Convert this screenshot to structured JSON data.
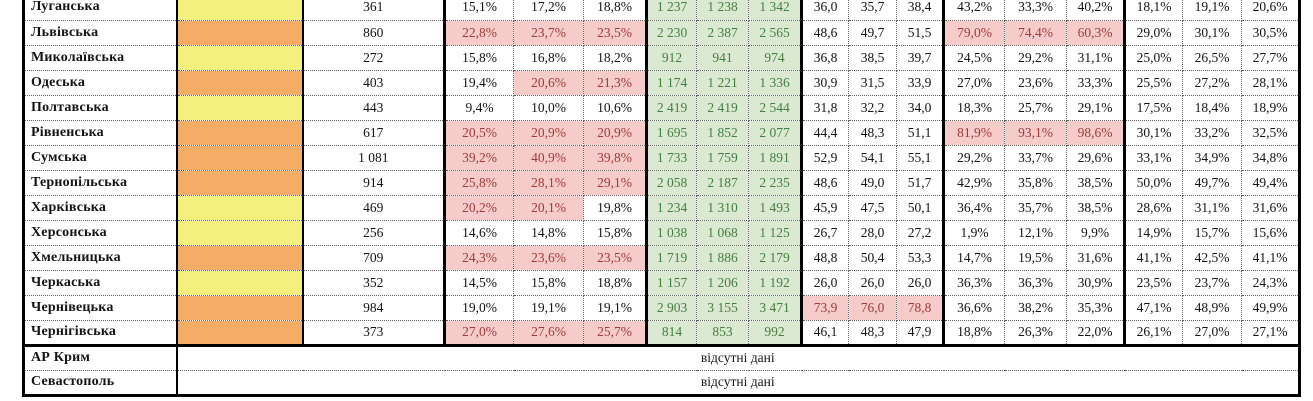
{
  "table": {
    "empty_note": "відсутні дані",
    "colors": {
      "yellow": "#F3F07E",
      "orange": "#F4AC67",
      "red_fill": "#F5CCCA",
      "red_text": "#A23A3A",
      "green_fill": "#DCE9D2",
      "green_text": "#41803F"
    },
    "rows": [
      {
        "region": "Луганська",
        "swatch": "yellow",
        "count": "361",
        "g1": [
          "15,1%",
          "17,2%",
          "18,8%"
        ],
        "g1_red": [
          0,
          0,
          0
        ],
        "g2": [
          "1 237",
          "1 238",
          "1 342"
        ],
        "g3": [
          "36,0",
          "35,7",
          "38,4"
        ],
        "g3_red": [
          0,
          0,
          0
        ],
        "g4": [
          "43,2%",
          "33,3%",
          "40,2%"
        ],
        "g4_red": [
          0,
          0,
          0
        ],
        "g5": [
          "18,1%",
          "19,1%",
          "20,6%"
        ]
      },
      {
        "region": "Львівська",
        "swatch": "orange",
        "count": "860",
        "g1": [
          "22,8%",
          "23,7%",
          "23,5%"
        ],
        "g1_red": [
          1,
          1,
          1
        ],
        "g2": [
          "2 230",
          "2 387",
          "2 565"
        ],
        "g3": [
          "48,6",
          "49,7",
          "51,5"
        ],
        "g3_red": [
          0,
          0,
          0
        ],
        "g4": [
          "79,0%",
          "74,4%",
          "60,3%"
        ],
        "g4_red": [
          1,
          1,
          1
        ],
        "g5": [
          "29,0%",
          "30,1%",
          "30,5%"
        ]
      },
      {
        "region": "Миколаївська",
        "swatch": "yellow",
        "count": "272",
        "g1": [
          "15,8%",
          "16,8%",
          "18,2%"
        ],
        "g1_red": [
          0,
          0,
          0
        ],
        "g2": [
          "912",
          "941",
          "974"
        ],
        "g3": [
          "36,8",
          "38,5",
          "39,7"
        ],
        "g3_red": [
          0,
          0,
          0
        ],
        "g4": [
          "24,5%",
          "29,2%",
          "31,1%"
        ],
        "g4_red": [
          0,
          0,
          0
        ],
        "g5": [
          "25,0%",
          "26,5%",
          "27,7%"
        ]
      },
      {
        "region": "Одеська",
        "swatch": "orange",
        "count": "403",
        "g1": [
          "19,4%",
          "20,6%",
          "21,3%"
        ],
        "g1_red": [
          0,
          1,
          1
        ],
        "g2": [
          "1 174",
          "1 221",
          "1 336"
        ],
        "g3": [
          "30,9",
          "31,5",
          "33,9"
        ],
        "g3_red": [
          0,
          0,
          0
        ],
        "g4": [
          "27,0%",
          "23,6%",
          "33,3%"
        ],
        "g4_red": [
          0,
          0,
          0
        ],
        "g5": [
          "25,5%",
          "27,2%",
          "28,1%"
        ]
      },
      {
        "region": "Полтавська",
        "swatch": "yellow",
        "count": "443",
        "g1": [
          "9,4%",
          "10,0%",
          "10,6%"
        ],
        "g1_red": [
          0,
          0,
          0
        ],
        "g2": [
          "2 419",
          "2 419",
          "2 544"
        ],
        "g3": [
          "31,8",
          "32,2",
          "34,0"
        ],
        "g3_red": [
          0,
          0,
          0
        ],
        "g4": [
          "18,3%",
          "25,7%",
          "29,1%"
        ],
        "g4_red": [
          0,
          0,
          0
        ],
        "g5": [
          "17,5%",
          "18,4%",
          "18,9%"
        ]
      },
      {
        "region": "Рівненська",
        "swatch": "orange",
        "count": "617",
        "g1": [
          "20,5%",
          "20,9%",
          "20,9%"
        ],
        "g1_red": [
          1,
          1,
          1
        ],
        "g2": [
          "1 695",
          "1 852",
          "2 077"
        ],
        "g3": [
          "44,4",
          "48,3",
          "51,1"
        ],
        "g3_red": [
          0,
          0,
          0
        ],
        "g4": [
          "81,9%",
          "93,1%",
          "98,6%"
        ],
        "g4_red": [
          1,
          1,
          1
        ],
        "g5": [
          "30,1%",
          "33,2%",
          "32,5%"
        ]
      },
      {
        "region": "Сумська",
        "swatch": "orange",
        "count": "1 081",
        "g1": [
          "39,2%",
          "40,9%",
          "39,8%"
        ],
        "g1_red": [
          1,
          1,
          1
        ],
        "g2": [
          "1 733",
          "1 759",
          "1 891"
        ],
        "g3": [
          "52,9",
          "54,1",
          "55,1"
        ],
        "g3_red": [
          0,
          0,
          0
        ],
        "g4": [
          "29,2%",
          "33,7%",
          "29,6%"
        ],
        "g4_red": [
          0,
          0,
          0
        ],
        "g5": [
          "33,1%",
          "34,9%",
          "34,8%"
        ]
      },
      {
        "region": "Тернопільська",
        "swatch": "orange",
        "count": "914",
        "g1": [
          "25,8%",
          "28,1%",
          "29,1%"
        ],
        "g1_red": [
          1,
          1,
          1
        ],
        "g2": [
          "2 058",
          "2 187",
          "2 235"
        ],
        "g3": [
          "48,6",
          "49,0",
          "51,7"
        ],
        "g3_red": [
          0,
          0,
          0
        ],
        "g4": [
          "42,9%",
          "35,8%",
          "38,5%"
        ],
        "g4_red": [
          0,
          0,
          0
        ],
        "g5": [
          "50,0%",
          "49,7%",
          "49,4%"
        ]
      },
      {
        "region": "Харківська",
        "swatch": "yellow",
        "count": "469",
        "g1": [
          "20,2%",
          "20,1%",
          "19,8%"
        ],
        "g1_red": [
          1,
          1,
          0
        ],
        "g2": [
          "1 234",
          "1 310",
          "1 493"
        ],
        "g3": [
          "45,9",
          "47,5",
          "50,1"
        ],
        "g3_red": [
          0,
          0,
          0
        ],
        "g4": [
          "36,4%",
          "35,7%",
          "38,5%"
        ],
        "g4_red": [
          0,
          0,
          0
        ],
        "g5": [
          "28,6%",
          "31,1%",
          "31,6%"
        ]
      },
      {
        "region": "Херсонська",
        "swatch": "yellow",
        "count": "256",
        "g1": [
          "14,6%",
          "14,8%",
          "15,8%"
        ],
        "g1_red": [
          0,
          0,
          0
        ],
        "g2": [
          "1 038",
          "1 068",
          "1 125"
        ],
        "g3": [
          "26,7",
          "28,0",
          "27,2"
        ],
        "g3_red": [
          0,
          0,
          0
        ],
        "g4": [
          "1,9%",
          "12,1%",
          "9,9%"
        ],
        "g4_red": [
          0,
          0,
          0
        ],
        "g5": [
          "14,9%",
          "15,7%",
          "15,6%"
        ]
      },
      {
        "region": "Хмельницька",
        "swatch": "orange",
        "count": "709",
        "g1": [
          "24,3%",
          "23,6%",
          "23,5%"
        ],
        "g1_red": [
          1,
          1,
          1
        ],
        "g2": [
          "1 719",
          "1 886",
          "2 179"
        ],
        "g3": [
          "48,8",
          "50,4",
          "53,3"
        ],
        "g3_red": [
          0,
          0,
          0
        ],
        "g4": [
          "14,7%",
          "19,5%",
          "31,6%"
        ],
        "g4_red": [
          0,
          0,
          0
        ],
        "g5": [
          "41,1%",
          "42,5%",
          "41,1%"
        ]
      },
      {
        "region": "Черкаська",
        "swatch": "yellow",
        "count": "352",
        "g1": [
          "14,5%",
          "15,8%",
          "18,8%"
        ],
        "g1_red": [
          0,
          0,
          0
        ],
        "g2": [
          "1 157",
          "1 206",
          "1 192"
        ],
        "g3": [
          "26,0",
          "26,0",
          "26,0"
        ],
        "g3_red": [
          0,
          0,
          0
        ],
        "g4": [
          "36,3%",
          "36,3%",
          "30,9%"
        ],
        "g4_red": [
          0,
          0,
          0
        ],
        "g5": [
          "23,5%",
          "23,7%",
          "24,3%"
        ]
      },
      {
        "region": "Чернівецька",
        "swatch": "orange",
        "count": "984",
        "g1": [
          "19,0%",
          "19,1%",
          "19,1%"
        ],
        "g1_red": [
          0,
          0,
          0
        ],
        "g2": [
          "2 903",
          "3 155",
          "3 471"
        ],
        "g3": [
          "73,9",
          "76,0",
          "78,8"
        ],
        "g3_red": [
          1,
          1,
          1
        ],
        "g4": [
          "36,6%",
          "38,2%",
          "35,3%"
        ],
        "g4_red": [
          0,
          0,
          0
        ],
        "g5": [
          "47,1%",
          "48,9%",
          "49,9%"
        ]
      },
      {
        "region": "Чернігівська",
        "swatch": "orange",
        "count": "373",
        "g1": [
          "27,0%",
          "27,6%",
          "25,7%"
        ],
        "g1_red": [
          1,
          1,
          1
        ],
        "g2": [
          "814",
          "853",
          "992"
        ],
        "g3": [
          "46,1",
          "48,3",
          "47,9"
        ],
        "g3_red": [
          0,
          0,
          0
        ],
        "g4": [
          "18,8%",
          "26,3%",
          "22,0%"
        ],
        "g4_red": [
          0,
          0,
          0
        ],
        "g5": [
          "26,1%",
          "27,0%",
          "27,1%"
        ]
      }
    ],
    "special_rows": [
      {
        "region": "АР Крим",
        "note": "відсутні дані"
      },
      {
        "region": "Севастополь",
        "note": "відсутні дані"
      }
    ]
  }
}
